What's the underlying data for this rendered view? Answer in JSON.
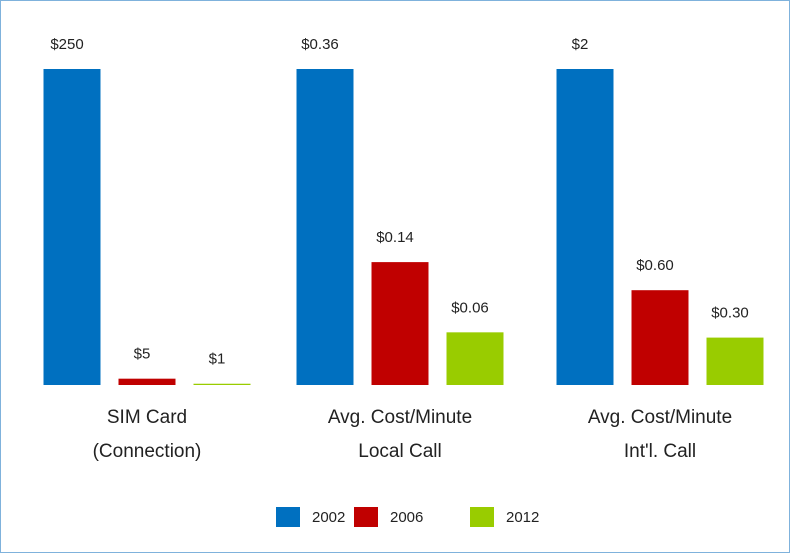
{
  "chart_data": {
    "type": "bar",
    "categories": [
      [
        "SIM Card",
        "(Connection)"
      ],
      [
        "Avg. Cost/Minute",
        "Local Call"
      ],
      [
        "Avg. Cost/Minute",
        "Int'l. Call"
      ]
    ],
    "series": [
      {
        "name": "2002",
        "color": "#0070c0",
        "values": [
          250,
          0.36,
          2
        ],
        "value_labels": [
          "$250",
          "$0.36",
          "$2"
        ]
      },
      {
        "name": "2006",
        "color": "#c00000",
        "values": [
          5,
          0.14,
          0.6
        ],
        "value_labels": [
          "$5",
          "$0.14",
          "$0.60"
        ]
      },
      {
        "name": "2012",
        "color": "#99cc00",
        "values": [
          1,
          0.06,
          0.3
        ],
        "value_labels": [
          "$1",
          "$0.06",
          "$0.30"
        ]
      }
    ]
  }
}
